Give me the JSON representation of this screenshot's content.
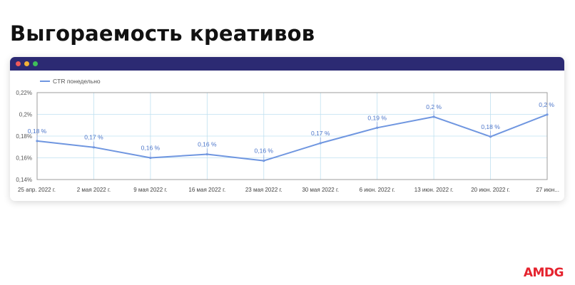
{
  "slide": {
    "title": "Выгораемость креативов",
    "logo": "AMDG"
  },
  "colors": {
    "window_bar": "#2c2a73",
    "series_line": "#6f96e0",
    "data_label": "#4a74c9",
    "grid": "#bfe0f0",
    "logo": "#e5232e"
  },
  "chart_data": {
    "type": "line",
    "title": "",
    "xlabel": "",
    "ylabel": "",
    "legend_position": "top-left",
    "grid": true,
    "categories": [
      "25 апр. 2022 г.",
      "2 мая 2022 г.",
      "9 мая 2022 г.",
      "16 мая 2022 г.",
      "23 мая 2022 г.",
      "30 мая 2022 г.",
      "6 июн. 2022 г.",
      "13 июн. 2022 г.",
      "20 июн. 2022 г.",
      "27 июн..."
    ],
    "series": [
      {
        "name": "CTR понедельно",
        "values": [
          0.1755,
          0.1697,
          0.16,
          0.1633,
          0.1573,
          0.1735,
          0.1877,
          0.1978,
          0.1795,
          0.1998
        ],
        "labels": [
          "0,18 %",
          "0,17 %",
          "0,16 %",
          "0,16 %",
          "0,16 %",
          "0,17 %",
          "0,19 %",
          "0,2 %",
          "0,18 %",
          "0,2 %"
        ]
      }
    ],
    "ylim": [
      0.14,
      0.22
    ],
    "yticks": [
      0.14,
      0.16,
      0.18,
      0.2,
      0.22
    ],
    "ytick_labels": [
      "0,14%",
      "0,16%",
      "0,18%",
      "0,2%",
      "0,22%"
    ]
  }
}
